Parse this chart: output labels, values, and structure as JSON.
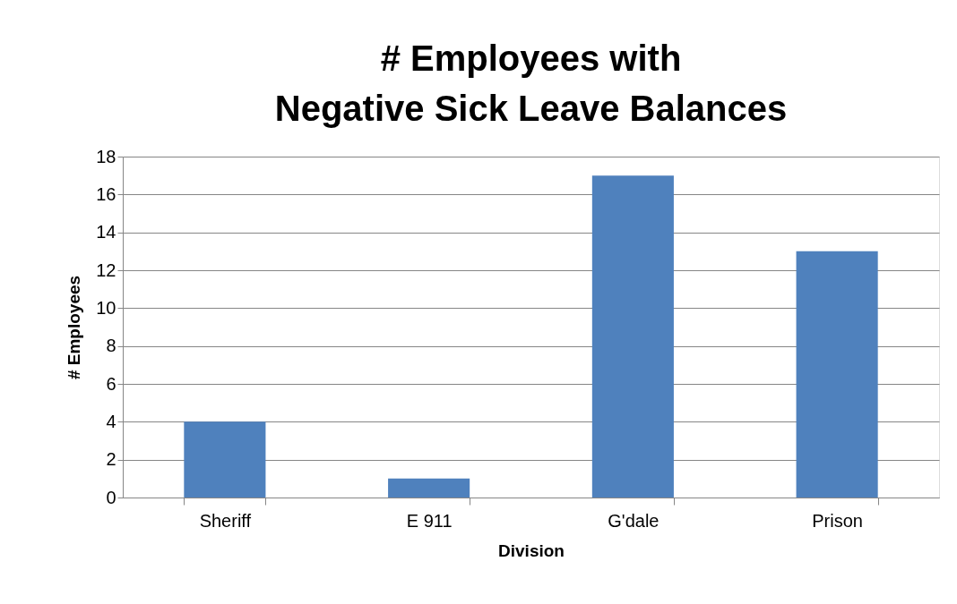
{
  "chart_data": {
    "type": "bar",
    "title": "# Employees with Negative Sick Leave Balances",
    "xlabel": "Division",
    "ylabel": "# Employees",
    "categories": [
      "Sheriff",
      "E 911",
      "G'dale",
      "Prison"
    ],
    "series": [
      {
        "color": "#4f81bd",
        "values": [
          4,
          1,
          17,
          13
        ]
      }
    ],
    "ylim": [
      0,
      18
    ],
    "yticks": [
      0,
      2,
      4,
      6,
      8,
      10,
      12,
      14,
      16,
      18
    ],
    "grid": "y",
    "legend": false
  }
}
